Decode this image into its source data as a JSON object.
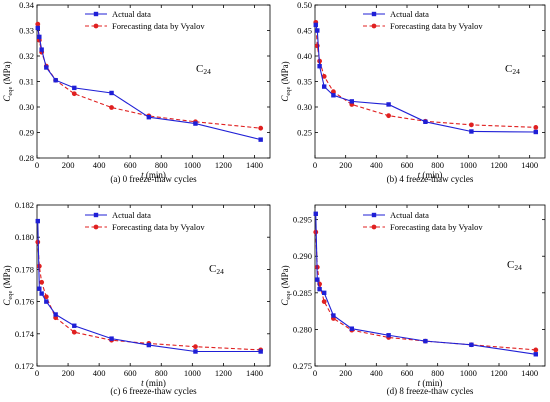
{
  "chart_data": [
    {
      "type": "line",
      "caption": "(a) 0 freeze-thaw cycles",
      "annotation": "C",
      "annotation_sub": "24",
      "xlabel": "t (min)",
      "ylabel_main": "C",
      "ylabel_sub": "eqe",
      "ylabel_unit": " (MPa)",
      "xlim": [
        0,
        1500
      ],
      "ylim": [
        0.28,
        0.34
      ],
      "xticks": [
        0,
        200,
        400,
        600,
        800,
        1000,
        1200,
        1400
      ],
      "yticks": [
        0.28,
        0.29,
        0.3,
        0.31,
        0.32,
        0.33,
        0.34
      ],
      "ytick_labels": [
        "0.28",
        "0.29",
        "0.30",
        "0.31",
        "0.32",
        "0.33",
        "0.34"
      ],
      "legend_position": "top-left",
      "series": [
        {
          "name": "Actual data",
          "color": "#1f1fd6",
          "style": "solid",
          "marker": "square",
          "x": [
            5,
            15,
            30,
            60,
            120,
            240,
            480,
            720,
            1020,
            1440
          ],
          "y": [
            0.331,
            0.3275,
            0.3225,
            0.3155,
            0.3105,
            0.3075,
            0.3055,
            0.296,
            0.2935,
            0.2872
          ]
        },
        {
          "name": "Forecasting data by Vyalov",
          "color": "#e02020",
          "style": "dashed",
          "marker": "circle",
          "x": [
            5,
            15,
            30,
            60,
            120,
            240,
            480,
            720,
            1020,
            1440
          ],
          "y": [
            0.3325,
            0.3262,
            0.3215,
            0.316,
            0.3105,
            0.3052,
            0.2998,
            0.2965,
            0.2942,
            0.2917
          ]
        }
      ]
    },
    {
      "type": "line",
      "caption": "(b) 4 freeze-thaw cycles",
      "annotation": "C",
      "annotation_sub": "24",
      "xlabel": "t (min)",
      "ylabel_main": "C",
      "ylabel_sub": "eqe",
      "ylabel_unit": " (MPa)",
      "xlim": [
        0,
        1500
      ],
      "ylim": [
        0.2,
        0.5
      ],
      "xticks": [
        0,
        200,
        400,
        600,
        800,
        1000,
        1200,
        1400
      ],
      "yticks": [
        0.25,
        0.3,
        0.35,
        0.4,
        0.45,
        0.5
      ],
      "ytick_labels": [
        "0.25",
        "0.30",
        "0.35",
        "0.40",
        "0.45",
        "0.50"
      ],
      "legend_position": "top-right",
      "series": [
        {
          "name": "Actual data",
          "color": "#1f1fd6",
          "style": "solid",
          "marker": "square",
          "x": [
            5,
            15,
            30,
            60,
            120,
            240,
            480,
            720,
            1020,
            1440
          ],
          "y": [
            0.461,
            0.45,
            0.38,
            0.34,
            0.323,
            0.311,
            0.305,
            0.271,
            0.252,
            0.251
          ]
        },
        {
          "name": "Forecasting data by Vyalov",
          "color": "#e02020",
          "style": "dashed",
          "marker": "circle",
          "x": [
            5,
            15,
            30,
            60,
            120,
            240,
            480,
            720,
            1020,
            1440
          ],
          "y": [
            0.466,
            0.42,
            0.39,
            0.36,
            0.33,
            0.305,
            0.283,
            0.272,
            0.265,
            0.26
          ]
        }
      ]
    },
    {
      "type": "line",
      "caption": "(c) 6 freeze-thaw cycles",
      "annotation": "C",
      "annotation_sub": "24",
      "xlabel": "t (min)",
      "ylabel_main": "C",
      "ylabel_sub": "eqe",
      "ylabel_unit": " (MPa)",
      "xlim": [
        0,
        1500
      ],
      "ylim": [
        0.172,
        0.182
      ],
      "xticks": [
        0,
        200,
        400,
        600,
        800,
        1000,
        1200,
        1400
      ],
      "yticks": [
        0.172,
        0.174,
        0.176,
        0.178,
        0.18,
        0.182
      ],
      "ytick_labels": [
        "0.172",
        "0.174",
        "0.176",
        "0.178",
        "0.180",
        "0.182"
      ],
      "legend_position": "top-right",
      "series": [
        {
          "name": "Actual data",
          "color": "#1f1fd6",
          "style": "solid",
          "marker": "square",
          "x": [
            5,
            15,
            30,
            60,
            120,
            240,
            480,
            720,
            1020,
            1440
          ],
          "y": [
            0.181,
            0.1768,
            0.1765,
            0.176,
            0.1752,
            0.1745,
            0.1737,
            0.1733,
            0.1729,
            0.1729
          ]
        },
        {
          "name": "Forecasting data by Vyalov",
          "color": "#e02020",
          "style": "dashed",
          "marker": "circle",
          "x": [
            5,
            15,
            30,
            60,
            120,
            240,
            480,
            720,
            1020,
            1440
          ],
          "y": [
            0.1797,
            0.1782,
            0.1772,
            0.1763,
            0.175,
            0.1741,
            0.1736,
            0.1734,
            0.1732,
            0.173
          ]
        }
      ]
    },
    {
      "type": "line",
      "caption": "(d) 8 freeze-thaw cycles",
      "annotation": "C",
      "annotation_sub": "24",
      "xlabel": "t (min)",
      "ylabel_main": "C",
      "ylabel_sub": "eqe",
      "ylabel_unit": " (MPa)",
      "xlim": [
        0,
        1500
      ],
      "ylim": [
        0.275,
        0.297
      ],
      "xticks": [
        0,
        200,
        400,
        600,
        800,
        1000,
        1200,
        1400
      ],
      "yticks": [
        0.275,
        0.28,
        0.285,
        0.29,
        0.295
      ],
      "ytick_labels": [
        "0.275",
        "0.280",
        "0.285",
        "0.290",
        "0.295"
      ],
      "legend_position": "top-right",
      "series": [
        {
          "name": "Actual data",
          "color": "#1f1fd6",
          "style": "solid",
          "marker": "square",
          "x": [
            5,
            15,
            30,
            60,
            120,
            240,
            480,
            720,
            1020,
            1440
          ],
          "y": [
            0.2958,
            0.2868,
            0.2855,
            0.285,
            0.2819,
            0.2801,
            0.2792,
            0.2784,
            0.2779,
            0.2766
          ]
        },
        {
          "name": "Forecasting data by Vyalov",
          "color": "#e02020",
          "style": "dashed",
          "marker": "circle",
          "x": [
            5,
            15,
            30,
            60,
            120,
            240,
            480,
            720,
            1020,
            1440
          ],
          "y": [
            0.2933,
            0.2885,
            0.2862,
            0.2838,
            0.2815,
            0.2799,
            0.2789,
            0.2784,
            0.2779,
            0.2772
          ]
        }
      ]
    }
  ]
}
